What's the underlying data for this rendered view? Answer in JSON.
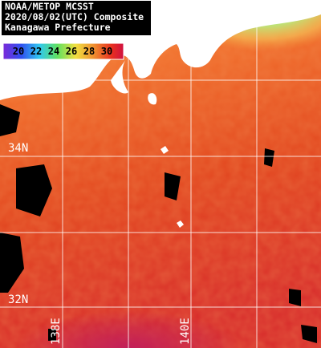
{
  "header": {
    "lines": [
      "NOAA/METOP MCSST",
      "2020/08/02(UTC) Composite",
      "Kanagawa Prefecture"
    ]
  },
  "colorbar": {
    "labels": [
      "20",
      "22",
      "24",
      "26",
      "28",
      "30"
    ]
  },
  "grid": {
    "latitudes": [
      "34N",
      "32N"
    ],
    "longitudes": [
      "138E",
      "140E"
    ]
  }
}
